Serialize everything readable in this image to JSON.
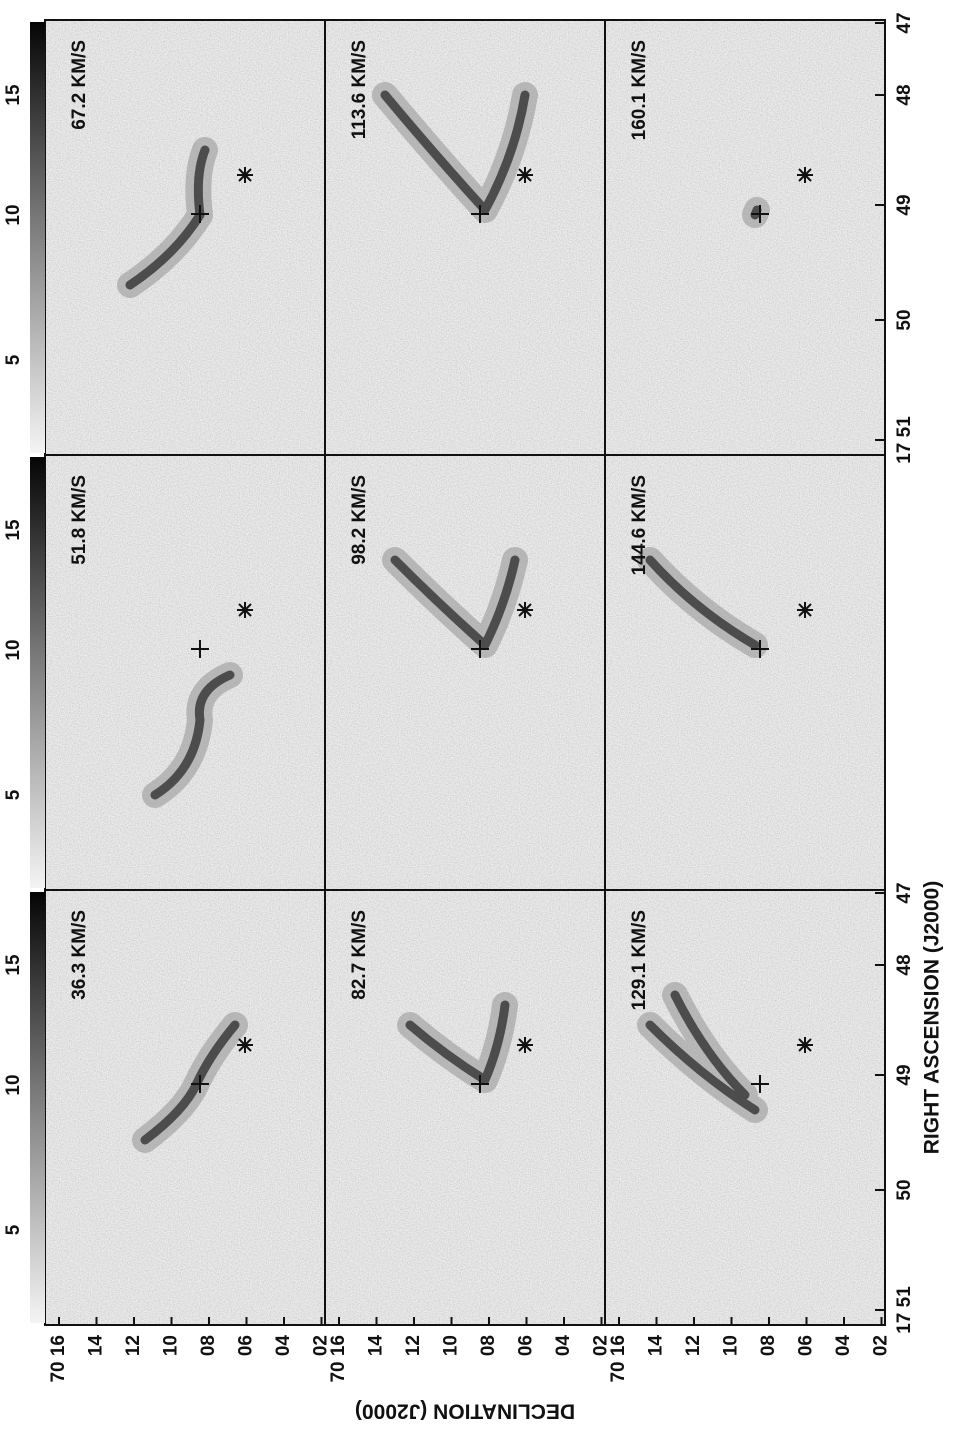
{
  "panels": [
    {
      "label": "36.3 KM/S"
    },
    {
      "label": "51.8 KM/S"
    },
    {
      "label": "67.2 KM/S"
    },
    {
      "label": "82.7 KM/S"
    },
    {
      "label": "98.2 KM/S"
    },
    {
      "label": "113.6 KM/S"
    },
    {
      "label": "129.1 KM/S"
    },
    {
      "label": "144.6 KM/S"
    },
    {
      "label": "160.1 KM/S"
    }
  ],
  "declination_axis": {
    "label": "DECLINATION (J2000)",
    "rows": [
      [
        "70 16",
        "14",
        "12",
        "10",
        "08",
        "06",
        "04",
        "02"
      ],
      [
        "70 16",
        "14",
        "12",
        "10",
        "08",
        "06",
        "04",
        "02"
      ],
      [
        "70 16",
        "14",
        "12",
        "10",
        "08",
        "06",
        "04",
        "02"
      ]
    ]
  },
  "right_ascension_axis": {
    "label": "RIGHT ASCENSION (J2000)",
    "left": [
      "17 51",
      "50",
      "49",
      "48",
      "47"
    ],
    "right": [
      "17 51",
      "50",
      "49",
      "48",
      "47"
    ]
  },
  "offset_axis": [
    [
      "5",
      "10",
      "15"
    ],
    [
      "5",
      "10",
      "15"
    ],
    [
      "5",
      "10",
      "15"
    ]
  ]
}
